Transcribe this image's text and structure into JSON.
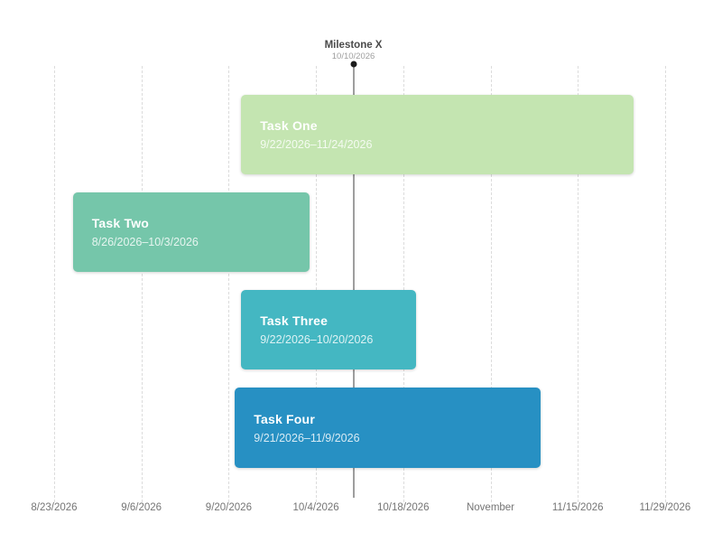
{
  "chart_data": {
    "type": "gantt",
    "background": "#ffffff",
    "grid": true,
    "x_axis": {
      "range_start": "8/23/2026",
      "range_end": "11/29/2026",
      "tick_interval_days": 14,
      "ticks": [
        {
          "date": "8/23/2026",
          "label": "8/23/2026"
        },
        {
          "date": "9/6/2026",
          "label": "9/6/2026"
        },
        {
          "date": "9/20/2026",
          "label": "9/20/2026"
        },
        {
          "date": "10/4/2026",
          "label": "10/4/2026"
        },
        {
          "date": "10/18/2026",
          "label": "10/18/2026"
        },
        {
          "date": "11/1/2026",
          "label": "November"
        },
        {
          "date": "11/15/2026",
          "label": "11/15/2026"
        },
        {
          "date": "11/29/2026",
          "label": "11/29/2026"
        }
      ]
    },
    "tasks": [
      {
        "name": "Task One",
        "start": "9/22/2026",
        "end": "11/24/2026",
        "date_label": "9/22/2026–11/24/2026",
        "color": "#c4e5b1"
      },
      {
        "name": "Task Two",
        "start": "8/26/2026",
        "end": "10/3/2026",
        "date_label": "8/26/2026–10/3/2026",
        "color": "#75c6aa"
      },
      {
        "name": "Task Three",
        "start": "9/22/2026",
        "end": "10/20/2026",
        "date_label": "9/22/2026–10/20/2026",
        "color": "#44b7c2"
      },
      {
        "name": "Task Four",
        "start": "9/21/2026",
        "end": "11/9/2026",
        "date_label": "9/21/2026–11/9/2026",
        "color": "#2790c3"
      }
    ],
    "milestones": [
      {
        "name": "Milestone X",
        "date": "10/10/2026",
        "date_label": "10/10/2026",
        "marker_color": "#1b1b1b",
        "line_color": "#9e9e9e"
      }
    ]
  }
}
